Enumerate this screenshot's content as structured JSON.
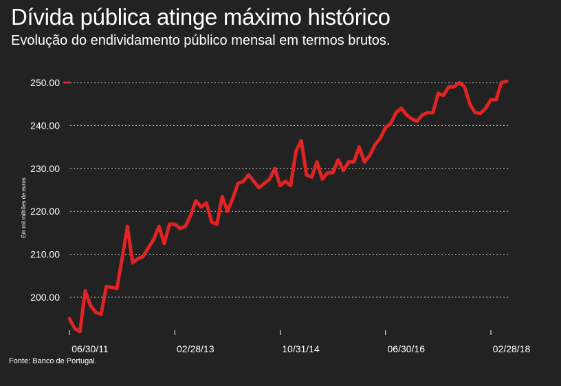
{
  "title": "Dívida pública atinge máximo histórico",
  "subtitle": "Evolução do endividamento público mensal em termos brutos.",
  "source": "Fonte: Banco de Portugal.",
  "chart_data": {
    "type": "line",
    "ylabel": "Em mil milhões de euros",
    "ylim": [
      192,
      251
    ],
    "yticks": [
      "200.00",
      "210.00",
      "220.00",
      "230.00",
      "240.00",
      "250.00"
    ],
    "ytick_values": [
      200,
      210,
      220,
      230,
      240,
      250
    ],
    "xticks": [
      {
        "label": "06/30/11",
        "index": 0
      },
      {
        "label": "02/28/13",
        "index": 20
      },
      {
        "label": "10/31/14",
        "index": 40
      },
      {
        "label": "06/30/16",
        "index": 60
      },
      {
        "label": "02/28/18",
        "index": 80
      }
    ],
    "grid": "horizontal-dotted",
    "line_color": "#e02424",
    "grid_color": "#cccccc",
    "series": [
      {
        "values": [
          195.0,
          192.7,
          192.0,
          201.5,
          198.0,
          196.5,
          196.0,
          202.5,
          202.3,
          202.0,
          209.0,
          216.5,
          208.0,
          209.0,
          209.5,
          211.5,
          213.5,
          216.5,
          212.5,
          217.0,
          217.0,
          216.0,
          216.5,
          219.0,
          222.5,
          221.0,
          222.0,
          217.5,
          217.0,
          223.5,
          220.0,
          223.0,
          226.5,
          227.0,
          228.5,
          227.0,
          225.5,
          226.5,
          227.5,
          230.0,
          226.0,
          227.0,
          226.0,
          234.0,
          236.5,
          228.5,
          228.0,
          231.5,
          227.5,
          229.0,
          229.0,
          232.0,
          229.5,
          231.5,
          231.5,
          235.0,
          231.5,
          233.0,
          235.5,
          237.0,
          239.5,
          240.5,
          243.0,
          244.0,
          242.5,
          241.5,
          241.0,
          242.5,
          243.0,
          243.0,
          247.5,
          247.0,
          249.0,
          249.0,
          250.0,
          249.0,
          245.0,
          243.0,
          242.8,
          244.0,
          246.0,
          246.0,
          250.0,
          250.3
        ]
      }
    ]
  }
}
